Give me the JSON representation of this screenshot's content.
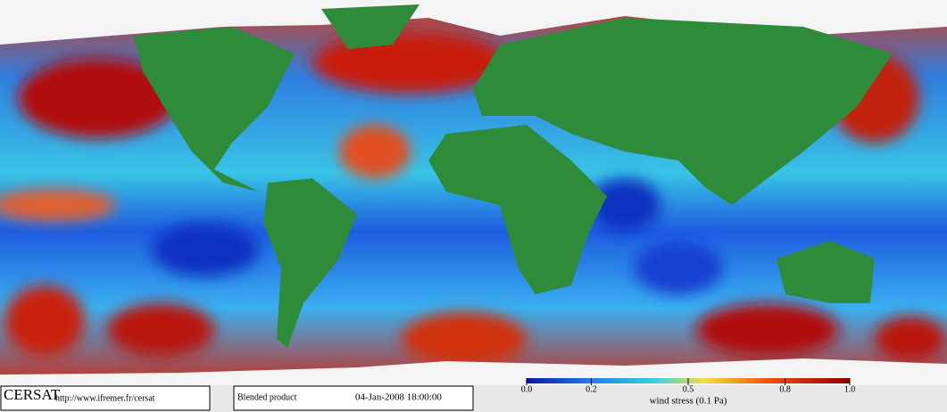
{
  "footer": {
    "logo": "CERSAT",
    "url": "http://www.ifremer.fr/cersat",
    "product": "Blended product",
    "datetime": "04-Jan-2008 18:00:00"
  },
  "colorbar": {
    "label": "wind stress (0.1 Pa)",
    "range": [
      0,
      1
    ],
    "ticks": [
      {
        "value": 0,
        "label": "0.0"
      },
      {
        "value": 0.2,
        "label": "0.2"
      },
      {
        "value": 0.5,
        "label": "0.5"
      },
      {
        "value": 0.8,
        "label": "0.8"
      },
      {
        "value": 1,
        "label": "1.0"
      }
    ]
  }
}
